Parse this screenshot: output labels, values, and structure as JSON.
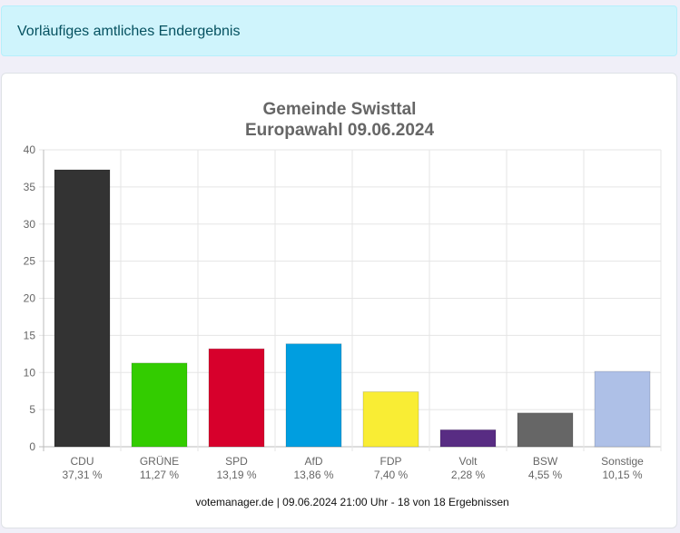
{
  "notice": {
    "text": "Vorläufiges amtliches Endergebnis"
  },
  "chart_data": {
    "type": "bar",
    "title": [
      "Gemeinde Swisttal",
      "Europawahl 09.06.2024"
    ],
    "xlabel": "",
    "ylabel": "",
    "ylim": [
      0,
      40
    ],
    "yticks": [
      0,
      5,
      10,
      15,
      20,
      25,
      30,
      35,
      40
    ],
    "grid": true,
    "legend": "none",
    "categories": [
      "CDU",
      "GRÜNE",
      "SPD",
      "AfD",
      "FDP",
      "Volt",
      "BSW",
      "Sonstige"
    ],
    "values": [
      37.31,
      11.27,
      13.19,
      13.86,
      7.4,
      2.28,
      4.55,
      10.15
    ],
    "value_labels": [
      "37,31 %",
      "11,27 %",
      "13,19 %",
      "13,86 %",
      "7,40 %",
      "2,28 %",
      "4,55 %",
      "10,15 %"
    ],
    "colors": [
      "#333333",
      "#33cc00",
      "#d7002c",
      "#009ee0",
      "#f9ed34",
      "#582c83",
      "#666666",
      "#aec0e7"
    ],
    "footer": "votemanager.de | 09.06.2024 21:00 Uhr - 18 von 18 Ergebnissen"
  }
}
